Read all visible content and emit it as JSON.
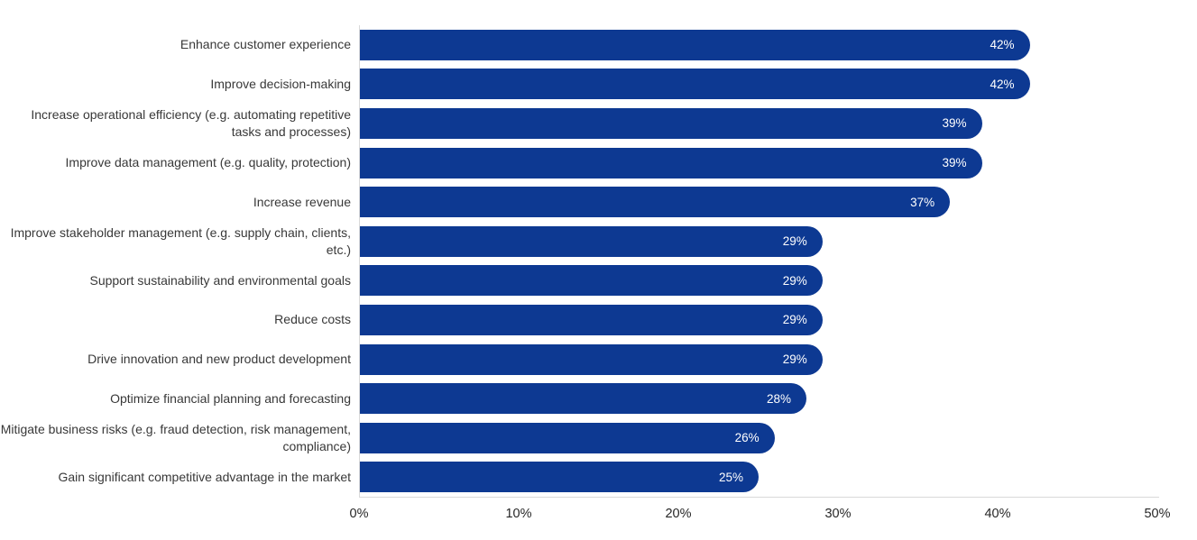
{
  "chart_data": {
    "type": "bar",
    "orientation": "horizontal",
    "title": "",
    "xlabel": "",
    "ylabel": "",
    "categories": [
      "Enhance customer experience",
      "Improve decision-making",
      "Increase operational efficiency (e.g. automating repetitive tasks and processes)",
      "Improve data management (e.g. quality, protection)",
      "Increase revenue",
      "Improve stakeholder management (e.g. supply chain, clients, etc.)",
      "Support sustainability and environmental goals",
      "Reduce costs",
      "Drive innovation and new product development",
      "Optimize financial planning and forecasting",
      "Mitigate business risks (e.g. fraud detection, risk management, compliance)",
      "Gain significant competitive advantage in the market"
    ],
    "values": [
      42,
      42,
      39,
      39,
      37,
      29,
      29,
      29,
      29,
      28,
      26,
      25
    ],
    "value_labels": [
      "42%",
      "42%",
      "39%",
      "39%",
      "37%",
      "29%",
      "29%",
      "29%",
      "29%",
      "28%",
      "26%",
      "25%"
    ],
    "xlim": [
      0,
      50
    ],
    "x_ticks": [
      "0%",
      "10%",
      "20%",
      "30%",
      "40%",
      "50%"
    ],
    "grid": false,
    "legend_position": "none",
    "bar_color": "#0d3992",
    "value_label_color": "#ffffff",
    "axis_line_color": "#d9d9d9",
    "category_label_color": "#383838"
  }
}
